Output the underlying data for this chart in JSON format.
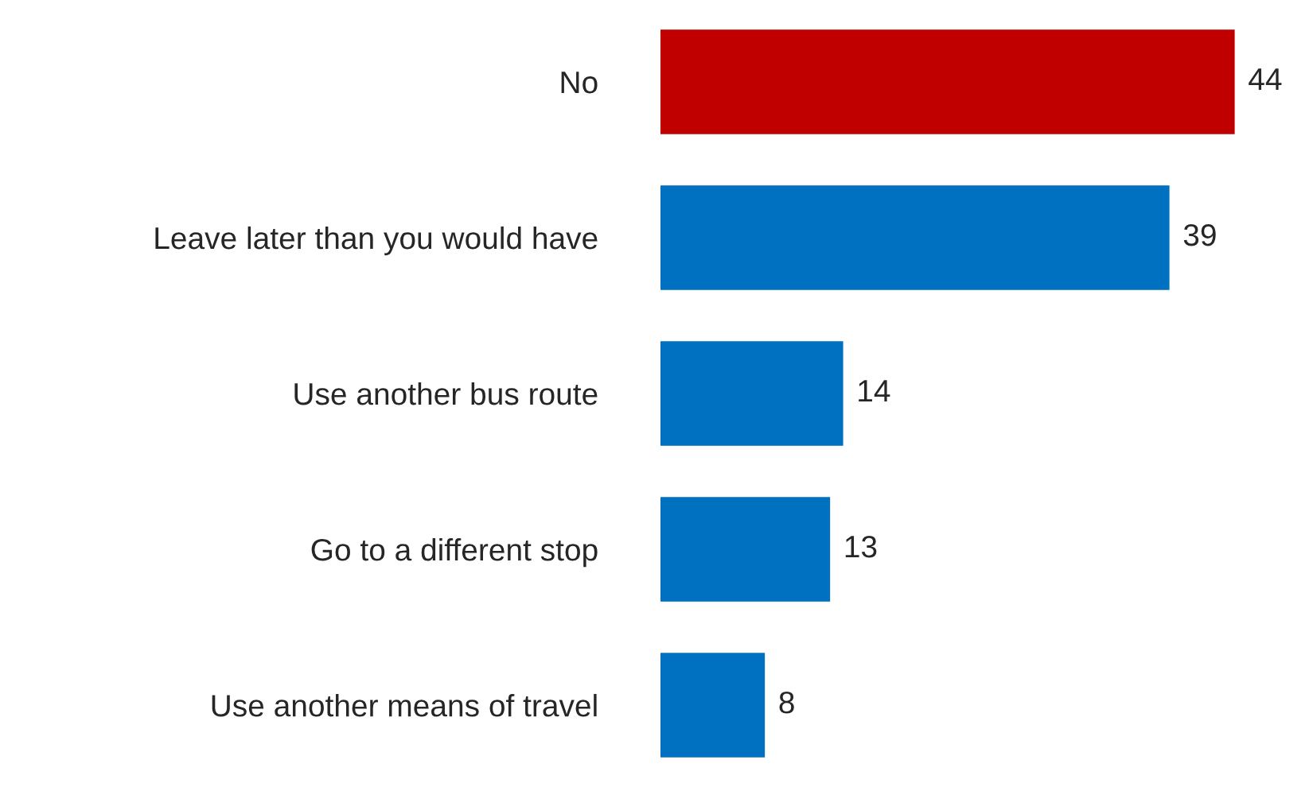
{
  "chart_data": {
    "type": "bar",
    "orientation": "horizontal",
    "categories": [
      "No",
      "Leave later than you would have",
      "Use another bus route",
      "Go to a different stop",
      "Use another means of travel"
    ],
    "values": [
      44,
      39,
      14,
      13,
      8
    ],
    "colors": [
      "#c00000",
      "#0070c0",
      "#0070c0",
      "#0070c0",
      "#0070c0"
    ],
    "data_labels": true,
    "grid": false,
    "legend": false
  }
}
